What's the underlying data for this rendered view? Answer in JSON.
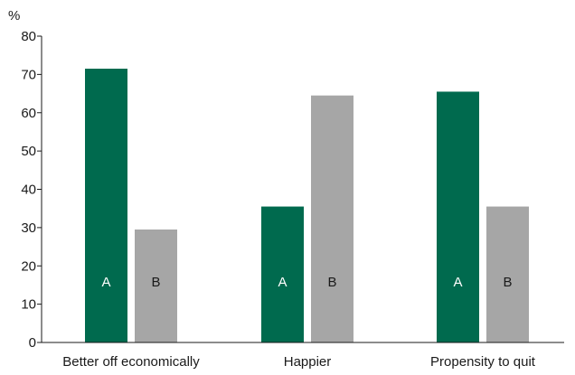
{
  "chart_data": {
    "type": "bar",
    "title": "",
    "xlabel": "",
    "ylabel": "%",
    "ylim": [
      0,
      80
    ],
    "yticks": [
      0,
      10,
      20,
      30,
      40,
      50,
      60,
      70,
      80
    ],
    "grid": false,
    "categories": [
      "Better off economically",
      "Happier",
      "Propensity to quit"
    ],
    "series": [
      {
        "name": "A",
        "color": "#006a4e",
        "label_color": "#ffffff",
        "values": [
          71.5,
          35.5,
          65.5
        ]
      },
      {
        "name": "B",
        "color": "#a6a6a6",
        "label_color": "#1a1a1a",
        "values": [
          29.5,
          64.5,
          35.5
        ]
      }
    ]
  }
}
